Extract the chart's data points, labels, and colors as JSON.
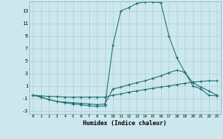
{
  "xlabel": "Humidex (Indice chaleur)",
  "background_color": "#cce8ee",
  "grid_color": "#aaccd4",
  "line_color": "#1a6e6e",
  "xlim": [
    -0.5,
    23.5
  ],
  "ylim": [
    -3.5,
    14.5
  ],
  "xticks": [
    0,
    1,
    2,
    3,
    4,
    5,
    6,
    7,
    8,
    9,
    10,
    11,
    12,
    13,
    14,
    15,
    16,
    17,
    18,
    19,
    20,
    21,
    22,
    23
  ],
  "yticks": [
    -3,
    -1,
    1,
    3,
    5,
    7,
    9,
    11,
    13
  ],
  "line1_x": [
    0,
    1,
    2,
    3,
    4,
    5,
    6,
    7,
    8,
    9,
    10,
    11,
    12,
    13,
    14,
    15,
    16,
    17,
    18,
    19,
    20,
    21,
    22,
    23
  ],
  "line1_y": [
    -0.5,
    -0.6,
    -0.7,
    -0.7,
    -0.8,
    -0.8,
    -0.8,
    -0.8,
    -0.8,
    -0.8,
    -0.5,
    -0.3,
    0.0,
    0.2,
    0.4,
    0.6,
    0.8,
    1.0,
    1.2,
    1.4,
    1.6,
    1.7,
    1.8,
    1.8
  ],
  "line2_x": [
    0,
    1,
    2,
    3,
    4,
    5,
    6,
    7,
    8,
    9,
    10,
    11,
    12,
    13,
    14,
    15,
    16,
    17,
    18,
    19,
    20,
    21,
    22,
    23
  ],
  "line2_y": [
    -0.5,
    -0.8,
    -1.2,
    -1.5,
    -1.6,
    -1.7,
    -1.8,
    -1.9,
    -2.0,
    -1.9,
    0.5,
    0.8,
    1.2,
    1.5,
    1.8,
    2.2,
    2.6,
    3.1,
    3.5,
    3.2,
    1.5,
    0.8,
    0.2,
    -0.5
  ],
  "line3_x": [
    0,
    1,
    2,
    3,
    4,
    5,
    6,
    7,
    8,
    9,
    10,
    11,
    12,
    13,
    14,
    15,
    16,
    17,
    18,
    19,
    20,
    21,
    22,
    23
  ],
  "line3_y": [
    -0.5,
    -0.8,
    -1.2,
    -1.5,
    -1.7,
    -1.9,
    -2.0,
    -2.2,
    -2.3,
    -2.2,
    7.5,
    13.0,
    13.5,
    14.2,
    14.4,
    14.4,
    14.3,
    9.0,
    5.5,
    3.2,
    1.0,
    0.5,
    -0.5,
    -0.6
  ]
}
